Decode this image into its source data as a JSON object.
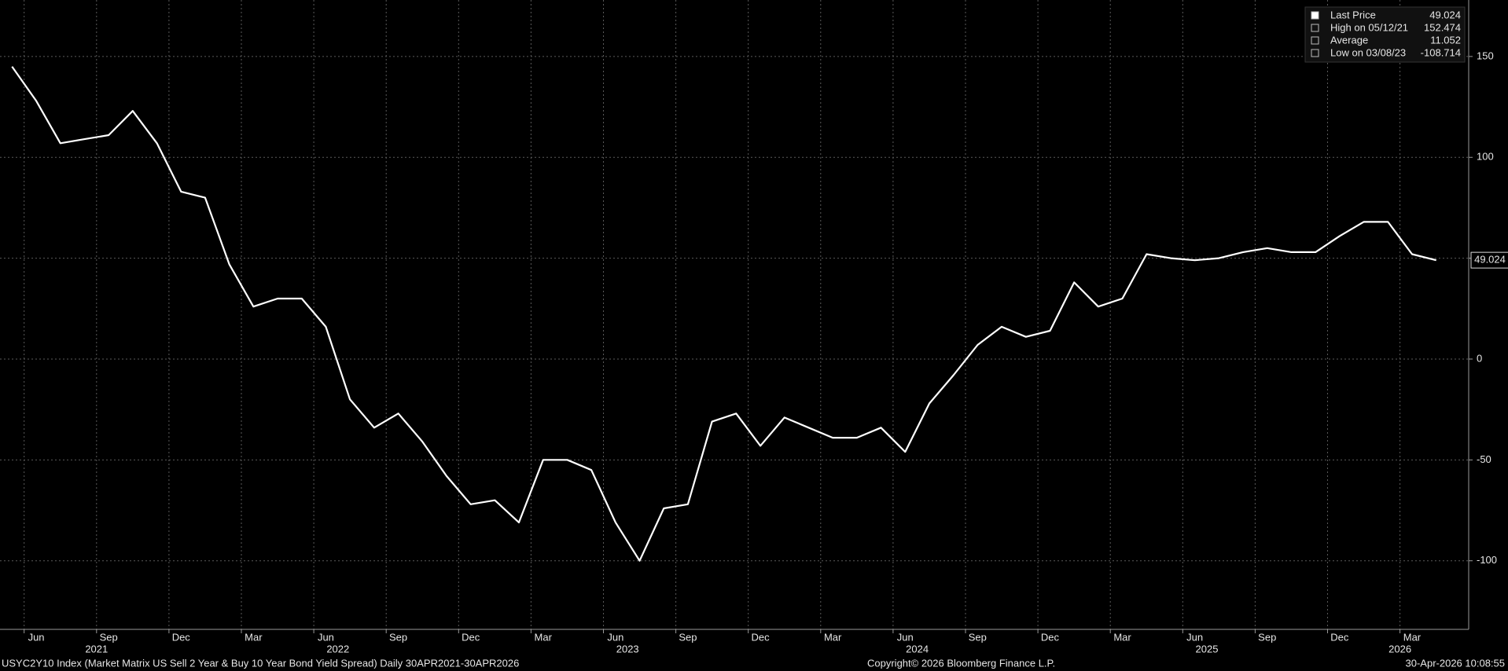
{
  "chart_data": {
    "type": "line",
    "color": "#ffffff",
    "x": [
      "2021-05",
      "2021-06",
      "2021-07",
      "2021-08",
      "2021-09",
      "2021-10",
      "2021-11",
      "2021-12",
      "2022-01",
      "2022-02",
      "2022-03",
      "2022-04",
      "2022-05",
      "2022-06",
      "2022-07",
      "2022-08",
      "2022-09",
      "2022-10",
      "2022-11",
      "2022-12",
      "2023-01",
      "2023-02",
      "2023-03",
      "2023-04",
      "2023-05",
      "2023-06",
      "2023-07",
      "2023-08",
      "2023-09",
      "2023-10",
      "2023-11",
      "2023-12",
      "2024-01",
      "2024-02",
      "2024-03",
      "2024-04",
      "2024-05",
      "2024-06",
      "2024-07",
      "2024-08",
      "2024-09",
      "2024-10",
      "2024-11",
      "2024-12",
      "2025-01",
      "2025-02",
      "2025-03",
      "2025-04",
      "2025-05",
      "2025-06",
      "2025-07",
      "2025-08",
      "2025-09",
      "2025-10",
      "2025-11",
      "2025-12",
      "2026-01",
      "2026-02",
      "2026-03",
      "2026-04"
    ],
    "values": [
      145,
      128,
      107,
      109,
      111,
      123,
      107,
      83,
      80,
      47,
      26,
      30,
      30,
      16,
      -20,
      -34,
      -27,
      -41,
      -58,
      -72,
      -70,
      -81,
      -50,
      -50,
      -55,
      -81,
      -100,
      -74,
      -72,
      -31,
      -27,
      -43,
      -29,
      -34,
      -39,
      -39,
      -34,
      -46,
      -22,
      -8,
      7,
      16,
      11,
      14,
      38,
      26,
      30,
      52,
      50,
      49,
      50,
      53,
      55,
      53,
      53,
      61,
      68,
      68,
      52,
      49
    ],
    "xlim": [
      "2021-05",
      "2026-05"
    ],
    "xticks": [
      {
        "value": "2021-06",
        "label": "Jun"
      },
      {
        "value": "2021-09",
        "label": "Sep"
      },
      {
        "value": "2021-12",
        "label": "Dec"
      },
      {
        "value": "2022-03",
        "label": "Mar"
      },
      {
        "value": "2022-06",
        "label": "Jun"
      },
      {
        "value": "2022-09",
        "label": "Sep"
      },
      {
        "value": "2022-12",
        "label": "Dec"
      },
      {
        "value": "2023-03",
        "label": "Mar"
      },
      {
        "value": "2023-06",
        "label": "Jun"
      },
      {
        "value": "2023-09",
        "label": "Sep"
      },
      {
        "value": "2023-12",
        "label": "Dec"
      },
      {
        "value": "2024-03",
        "label": "Mar"
      },
      {
        "value": "2024-06",
        "label": "Jun"
      },
      {
        "value": "2024-09",
        "label": "Sep"
      },
      {
        "value": "2024-12",
        "label": "Dec"
      },
      {
        "value": "2025-03",
        "label": "Mar"
      },
      {
        "value": "2025-06",
        "label": "Jun"
      },
      {
        "value": "2025-09",
        "label": "Sep"
      },
      {
        "value": "2025-12",
        "label": "Dec"
      },
      {
        "value": "2026-03",
        "label": "Mar"
      }
    ],
    "year_labels": [
      "2021",
      "2022",
      "2023",
      "2024",
      "2025",
      "2026"
    ],
    "ylim": [
      -134,
      178
    ],
    "yticks": [
      -100,
      -50,
      0,
      50,
      100,
      150
    ],
    "grid": true,
    "legend": [
      {
        "label": "Last Price",
        "value": 49.024
      },
      {
        "label": "High on 05/12/21",
        "value": 152.474
      },
      {
        "label": "Average",
        "value": 11.052
      },
      {
        "label": "Low on 03/08/23",
        "value": -108.714
      }
    ],
    "footer_left": "USYC2Y10 Index (Market Matrix US Sell 2 Year & Buy 10 Year Bond Yield Spread) Daily 30APR2021-30APR2026",
    "footer_center": "Copyright© 2026 Bloomberg Finance L.P.",
    "footer_right": "30-Apr-2026 10:08:55"
  }
}
